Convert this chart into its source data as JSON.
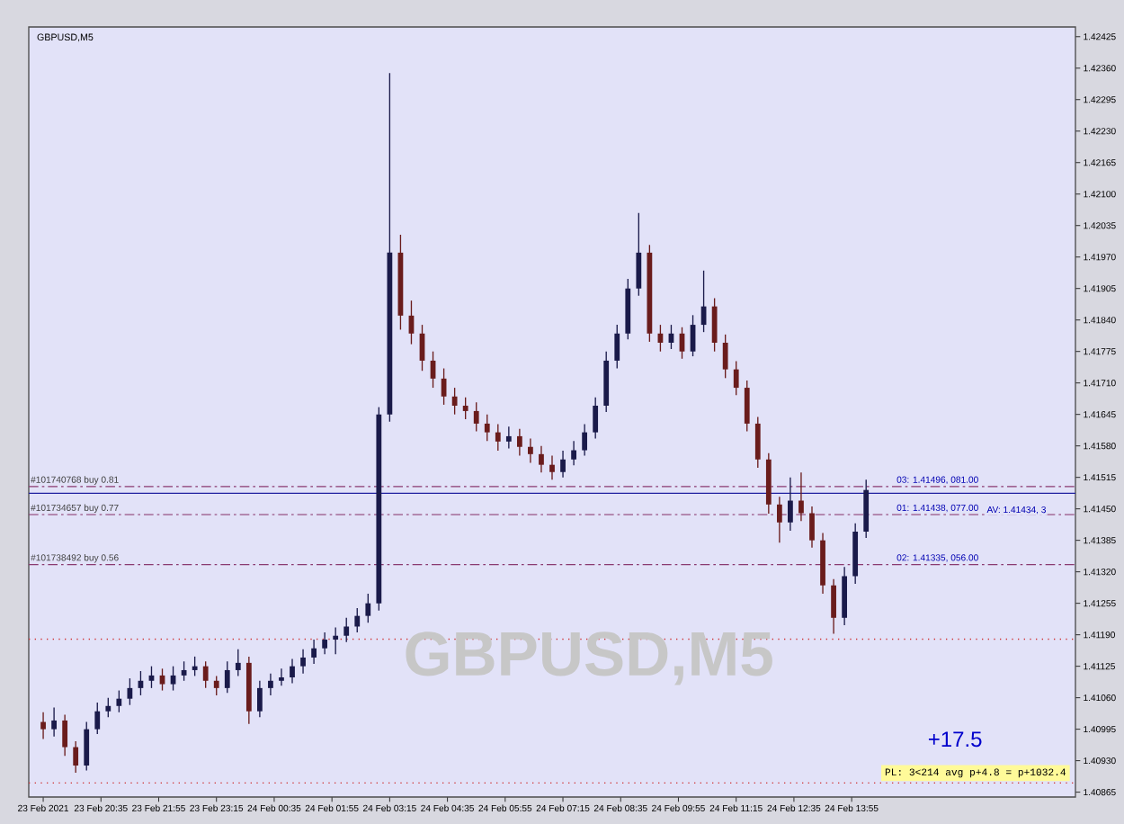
{
  "chart_data": {
    "type": "candlestick",
    "title": "GBPUSD,M5",
    "x": [
      "2021-02-23T19:15",
      "2021-02-23T19:30",
      "2021-02-23T19:45",
      "2021-02-23T20:00",
      "2021-02-23T20:15",
      "2021-02-23T20:30",
      "2021-02-23T20:45",
      "2021-02-23T21:00",
      "2021-02-23T21:15",
      "2021-02-23T21:30",
      "2021-02-23T21:45",
      "2021-02-23T22:00",
      "2021-02-23T22:15",
      "2021-02-23T22:30",
      "2021-02-23T22:45",
      "2021-02-23T23:00",
      "2021-02-23T23:15",
      "2021-02-23T23:30",
      "2021-02-23T23:45",
      "2021-02-24T00:00",
      "2021-02-24T00:15",
      "2021-02-24T00:30",
      "2021-02-24T00:45",
      "2021-02-24T01:00",
      "2021-02-24T01:15",
      "2021-02-24T01:30",
      "2021-02-24T01:45",
      "2021-02-24T02:00",
      "2021-02-24T02:15",
      "2021-02-24T02:30",
      "2021-02-24T02:45",
      "2021-02-24T03:00",
      "2021-02-24T03:15",
      "2021-02-24T03:30",
      "2021-02-24T03:45",
      "2021-02-24T04:00",
      "2021-02-24T04:15",
      "2021-02-24T04:30",
      "2021-02-24T04:45",
      "2021-02-24T05:00",
      "2021-02-24T05:15",
      "2021-02-24T05:30",
      "2021-02-24T05:45",
      "2021-02-24T06:00",
      "2021-02-24T06:15",
      "2021-02-24T06:30",
      "2021-02-24T06:45",
      "2021-02-24T07:00",
      "2021-02-24T07:15",
      "2021-02-24T07:30",
      "2021-02-24T07:45",
      "2021-02-24T08:00",
      "2021-02-24T08:15",
      "2021-02-24T08:30",
      "2021-02-24T08:45",
      "2021-02-24T09:00",
      "2021-02-24T09:15",
      "2021-02-24T09:30",
      "2021-02-24T09:45",
      "2021-02-24T10:00",
      "2021-02-24T10:15",
      "2021-02-24T10:30",
      "2021-02-24T10:45",
      "2021-02-24T11:00",
      "2021-02-24T11:15",
      "2021-02-24T11:30",
      "2021-02-24T11:45",
      "2021-02-24T12:00",
      "2021-02-24T12:15",
      "2021-02-24T12:30",
      "2021-02-24T12:45",
      "2021-02-24T13:00",
      "2021-02-24T13:15",
      "2021-02-24T13:30",
      "2021-02-24T13:45",
      "2021-02-24T14:00",
      "2021-02-24T14:15"
    ],
    "ohlc": [
      [
        1.4101,
        1.4103,
        1.40975,
        1.40995
      ],
      [
        1.40995,
        1.4104,
        1.4098,
        1.41013
      ],
      [
        1.41013,
        1.41025,
        1.4094,
        1.40958
      ],
      [
        1.40958,
        1.4097,
        1.40905,
        1.4092
      ],
      [
        1.4092,
        1.4101,
        1.4091,
        1.40995
      ],
      [
        1.40995,
        1.4105,
        1.40985,
        1.41032
      ],
      [
        1.41032,
        1.4106,
        1.4102,
        1.41043
      ],
      [
        1.41043,
        1.41075,
        1.4103,
        1.41058
      ],
      [
        1.41058,
        1.411,
        1.41045,
        1.4108
      ],
      [
        1.4108,
        1.41115,
        1.41065,
        1.41095
      ],
      [
        1.41095,
        1.41125,
        1.4108,
        1.41106
      ],
      [
        1.41106,
        1.4112,
        1.41075,
        1.41088
      ],
      [
        1.41088,
        1.41125,
        1.41075,
        1.41106
      ],
      [
        1.41106,
        1.41135,
        1.41095,
        1.41117
      ],
      [
        1.41117,
        1.41145,
        1.41105,
        1.41125
      ],
      [
        1.41125,
        1.41135,
        1.4108,
        1.41095
      ],
      [
        1.41095,
        1.41105,
        1.41065,
        1.4108
      ],
      [
        1.4108,
        1.41135,
        1.4107,
        1.41117
      ],
      [
        1.41117,
        1.4116,
        1.41105,
        1.41132
      ],
      [
        1.41132,
        1.41145,
        1.41006,
        1.41032
      ],
      [
        1.41032,
        1.41095,
        1.4102,
        1.4108
      ],
      [
        1.4108,
        1.4111,
        1.41065,
        1.41095
      ],
      [
        1.41095,
        1.4112,
        1.41085,
        1.41102
      ],
      [
        1.41102,
        1.4114,
        1.4109,
        1.41125
      ],
      [
        1.41125,
        1.4116,
        1.4111,
        1.41143
      ],
      [
        1.41143,
        1.4118,
        1.4113,
        1.41162
      ],
      [
        1.41162,
        1.41195,
        1.4115,
        1.4118
      ],
      [
        1.4118,
        1.41205,
        1.4115,
        1.41188
      ],
      [
        1.41188,
        1.41225,
        1.41175,
        1.41207
      ],
      [
        1.41207,
        1.41245,
        1.41195,
        1.41229
      ],
      [
        1.41229,
        1.41275,
        1.41215,
        1.41255
      ],
      [
        1.41255,
        1.4166,
        1.4124,
        1.41645
      ],
      [
        1.41645,
        1.4235,
        1.4163,
        1.41979
      ],
      [
        1.41979,
        1.42016,
        1.4182,
        1.41849
      ],
      [
        1.41849,
        1.4188,
        1.4179,
        1.41812
      ],
      [
        1.41812,
        1.4183,
        1.41735,
        1.41756
      ],
      [
        1.41756,
        1.41775,
        1.417,
        1.41719
      ],
      [
        1.41719,
        1.4174,
        1.41665,
        1.41682
      ],
      [
        1.41682,
        1.417,
        1.41645,
        1.41663
      ],
      [
        1.41663,
        1.4168,
        1.41635,
        1.41652
      ],
      [
        1.41652,
        1.4167,
        1.4161,
        1.41626
      ],
      [
        1.41626,
        1.41645,
        1.4159,
        1.41608
      ],
      [
        1.41608,
        1.41625,
        1.4157,
        1.41589
      ],
      [
        1.41589,
        1.4162,
        1.41575,
        1.416
      ],
      [
        1.416,
        1.41615,
        1.4156,
        1.41578
      ],
      [
        1.41578,
        1.41595,
        1.41545,
        1.41563
      ],
      [
        1.41563,
        1.4158,
        1.41525,
        1.41541
      ],
      [
        1.41541,
        1.4156,
        1.4151,
        1.41526
      ],
      [
        1.41526,
        1.4157,
        1.41515,
        1.41552
      ],
      [
        1.41552,
        1.4159,
        1.4154,
        1.41571
      ],
      [
        1.41571,
        1.41625,
        1.4156,
        1.41608
      ],
      [
        1.41608,
        1.4168,
        1.41595,
        1.41663
      ],
      [
        1.41663,
        1.41775,
        1.4165,
        1.41756
      ],
      [
        1.41756,
        1.4183,
        1.4174,
        1.41812
      ],
      [
        1.41812,
        1.41925,
        1.418,
        1.41905
      ],
      [
        1.41905,
        1.42061,
        1.4189,
        1.41979
      ],
      [
        1.41979,
        1.41995,
        1.41795,
        1.41812
      ],
      [
        1.41812,
        1.4183,
        1.41775,
        1.41793
      ],
      [
        1.41793,
        1.4183,
        1.4178,
        1.41812
      ],
      [
        1.41812,
        1.41825,
        1.4176,
        1.41775
      ],
      [
        1.41775,
        1.4185,
        1.41765,
        1.4183
      ],
      [
        1.4183,
        1.41942,
        1.41815,
        1.41868
      ],
      [
        1.41868,
        1.41885,
        1.41775,
        1.41793
      ],
      [
        1.41793,
        1.4181,
        1.4172,
        1.41738
      ],
      [
        1.41738,
        1.41755,
        1.41685,
        1.417
      ],
      [
        1.417,
        1.41715,
        1.4161,
        1.41626
      ],
      [
        1.41626,
        1.4164,
        1.41535,
        1.41552
      ],
      [
        1.41552,
        1.41565,
        1.4144,
        1.41459
      ],
      [
        1.41459,
        1.41475,
        1.4138,
        1.41422
      ],
      [
        1.41422,
        1.41515,
        1.41405,
        1.41467
      ],
      [
        1.41467,
        1.41525,
        1.41425,
        1.41441
      ],
      [
        1.41441,
        1.41455,
        1.4137,
        1.41385
      ],
      [
        1.41385,
        1.414,
        1.41275,
        1.41292
      ],
      [
        1.41292,
        1.41305,
        1.41192,
        1.41225
      ],
      [
        1.41225,
        1.4133,
        1.4121,
        1.41311
      ],
      [
        1.41311,
        1.4142,
        1.41295,
        1.41403
      ],
      [
        1.41403,
        1.4151,
        1.4139,
        1.41489
      ]
    ],
    "colors": [
      "#6a1c1c",
      "#1a1a4a",
      "#6a1c1c",
      "#6a1c1c",
      "#1a1a4a",
      "#1a1a4a",
      "#1a1a4a",
      "#1a1a4a",
      "#1a1a4a",
      "#1a1a4a",
      "#1a1a4a",
      "#6a1c1c",
      "#1a1a4a",
      "#1a1a4a",
      "#1a1a4a",
      "#6a1c1c",
      "#6a1c1c",
      "#1a1a4a",
      "#1a1a4a",
      "#6a1c1c",
      "#1a1a4a",
      "#1a1a4a",
      "#1a1a4a",
      "#1a1a4a",
      "#1a1a4a",
      "#1a1a4a",
      "#1a1a4a",
      "#1a1a4a",
      "#1a1a4a",
      "#1a1a4a",
      "#1a1a4a",
      "#1a1a4a",
      "#1a1a4a",
      "#6a1c1c",
      "#6a1c1c",
      "#6a1c1c",
      "#6a1c1c",
      "#6a1c1c",
      "#6a1c1c",
      "#6a1c1c",
      "#6a1c1c",
      "#6a1c1c",
      "#6a1c1c",
      "#1a1a4a",
      "#6a1c1c",
      "#6a1c1c",
      "#6a1c1c",
      "#6a1c1c",
      "#1a1a4a",
      "#1a1a4a",
      "#1a1a4a",
      "#1a1a4a",
      "#1a1a4a",
      "#1a1a4a",
      "#1a1a4a",
      "#1a1a4a",
      "#6a1c1c",
      "#6a1c1c",
      "#1a1a4a",
      "#6a1c1c",
      "#1a1a4a",
      "#1a1a4a",
      "#6a1c1c",
      "#6a1c1c",
      "#6a1c1c",
      "#6a1c1c",
      "#6a1c1c",
      "#6a1c1c",
      "#6a1c1c",
      "#1a1a4a",
      "#6a1c1c",
      "#6a1c1c",
      "#6a1c1c",
      "#6a1c1c",
      "#1a1a4a",
      "#1a1a4a",
      "#1a1a4a"
    ],
    "xlim": [
      "2021-02-23T18:55",
      "2021-02-24T19:05"
    ],
    "ylim": [
      1.40855,
      1.42445
    ],
    "xticks": [
      {
        "value": "2021-02-23T19:15",
        "label": "23 Feb 2021"
      },
      {
        "value": "2021-02-23T20:35",
        "label": "23 Feb 20:35"
      },
      {
        "value": "2021-02-23T21:55",
        "label": "23 Feb 21:55"
      },
      {
        "value": "2021-02-23T23:15",
        "label": "23 Feb 23:15"
      },
      {
        "value": "2021-02-24T00:35",
        "label": "24 Feb 00:35"
      },
      {
        "value": "2021-02-24T01:55",
        "label": "24 Feb 01:55"
      },
      {
        "value": "2021-02-24T03:15",
        "label": "24 Feb 03:15"
      },
      {
        "value": "2021-02-24T04:35",
        "label": "24 Feb 04:35"
      },
      {
        "value": "2021-02-24T05:55",
        "label": "24 Feb 05:55"
      },
      {
        "value": "2021-02-24T07:15",
        "label": "24 Feb 07:15"
      },
      {
        "value": "2021-02-24T08:35",
        "label": "24 Feb 08:35"
      },
      {
        "value": "2021-02-24T09:55",
        "label": "24 Feb 09:55"
      },
      {
        "value": "2021-02-24T11:15",
        "label": "24 Feb 11:15"
      },
      {
        "value": "2021-02-24T12:35",
        "label": "24 Feb 12:35"
      },
      {
        "value": "2021-02-24T13:55",
        "label": "24 Feb 13:55"
      }
    ],
    "yticks": [
      1.42425,
      {
        "value": 1.4236,
        "label": "1.42360"
      },
      1.42295,
      {
        "value": 1.4223,
        "label": "1.42230"
      },
      1.42165,
      {
        "value": 1.421,
        "label": "1.42100"
      },
      1.42035,
      {
        "value": 1.4197,
        "label": "1.41970"
      },
      1.41905,
      {
        "value": 1.4184,
        "label": "1.41840"
      },
      1.41775,
      {
        "value": 1.4171,
        "label": "1.41710"
      },
      1.41645,
      {
        "value": 1.4158,
        "label": "1.41580"
      },
      1.41515,
      {
        "value": 1.4145,
        "label": "1.41450"
      },
      1.41385,
      {
        "value": 1.4132,
        "label": "1.41320"
      },
      1.41255,
      {
        "value": 1.4119,
        "label": "1.41190"
      },
      1.41125,
      {
        "value": 1.4106,
        "label": "1.41060"
      },
      1.40995,
      {
        "value": 1.4093,
        "label": "1.40930"
      },
      1.40865
    ],
    "ref_lines": [
      {
        "axis": "y",
        "value": 1.41496,
        "label": "#101740768 buy 0.81",
        "color": "#8a3a70",
        "line_style": "dashed"
      },
      {
        "axis": "y",
        "value": 1.41438,
        "label": "#101734657 buy 0.77",
        "color": "#8a3a70",
        "line_style": "dashed"
      },
      {
        "axis": "y",
        "value": 1.41335,
        "label": "#101738492 buy 0.56",
        "color": "#8a3a70",
        "line_style": "dashed"
      },
      {
        "axis": "y",
        "value": 1.41482,
        "color": "#2020a0",
        "line_style": "solid"
      },
      {
        "axis": "y",
        "value": 1.41181,
        "color": "#d03030",
        "line_style": "dotted"
      },
      {
        "axis": "y",
        "value": 1.40884,
        "color": "#d03030",
        "line_style": "dotted"
      }
    ],
    "annotations": [
      "GBPUSD,M5",
      "+17.5",
      "PL: 3<214 avg p+4.8 = p+1032.4",
      {
        "text": "03: 1.41496, 081.00",
        "x": "2021-02-24T14:55",
        "y": 1.41496
      },
      {
        "text": "01: 1.41438, 077.00",
        "x": "2021-02-24T14:55",
        "y": 1.41438
      },
      {
        "text": "AV: 1.41434, 3",
        "x": "2021-02-24T17:00",
        "y": 1.41434
      },
      {
        "text": "02: 1.41335, 056.00",
        "x": "2021-02-24T14:55",
        "y": 1.41335
      }
    ]
  }
}
